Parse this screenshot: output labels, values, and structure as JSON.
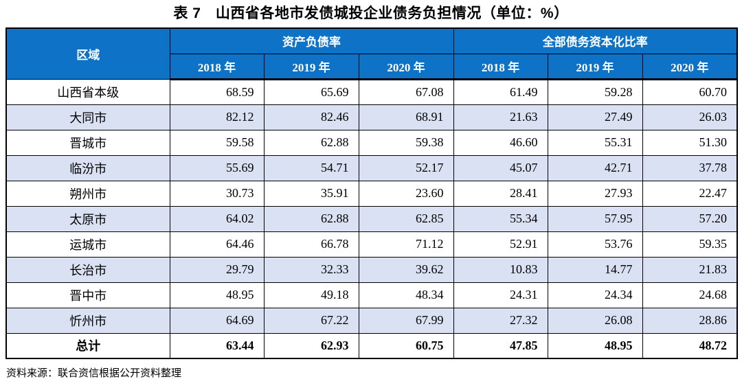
{
  "title": "表 7　山西省各地市发债城投企业债务负担情况（单位：%）",
  "colors": {
    "header_bg": "#0E72C6",
    "header_text": "#FFFFFF",
    "alt_row_bg": "#D9E1F2",
    "border": "#000000"
  },
  "table": {
    "region_header": "区域",
    "group_headers": [
      "资产负债率",
      "全部债务资本化比率"
    ],
    "year_headers": [
      "2018 年",
      "2019 年",
      "2020 年",
      "2018 年",
      "2019 年",
      "2020 年"
    ],
    "rows": [
      {
        "region": "山西省本级",
        "values": [
          "68.59",
          "65.69",
          "67.08",
          "61.49",
          "59.28",
          "60.70"
        ]
      },
      {
        "region": "大同市",
        "values": [
          "82.12",
          "82.46",
          "68.91",
          "21.63",
          "27.49",
          "26.03"
        ]
      },
      {
        "region": "晋城市",
        "values": [
          "59.58",
          "62.88",
          "59.38",
          "46.60",
          "55.31",
          "51.30"
        ]
      },
      {
        "region": "临汾市",
        "values": [
          "55.69",
          "54.71",
          "52.17",
          "45.07",
          "42.71",
          "37.78"
        ]
      },
      {
        "region": "朔州市",
        "values": [
          "30.73",
          "35.91",
          "23.60",
          "28.41",
          "27.93",
          "22.47"
        ]
      },
      {
        "region": "太原市",
        "values": [
          "64.02",
          "62.88",
          "62.85",
          "55.34",
          "57.95",
          "57.20"
        ]
      },
      {
        "region": "运城市",
        "values": [
          "64.46",
          "66.78",
          "71.12",
          "52.91",
          "53.76",
          "59.35"
        ]
      },
      {
        "region": "长治市",
        "values": [
          "29.79",
          "32.33",
          "39.62",
          "10.83",
          "14.77",
          "21.83"
        ]
      },
      {
        "region": "晋中市",
        "values": [
          "48.95",
          "49.18",
          "48.34",
          "24.31",
          "24.34",
          "24.68"
        ]
      },
      {
        "region": "忻州市",
        "values": [
          "64.69",
          "67.22",
          "67.99",
          "27.32",
          "26.08",
          "28.86"
        ]
      },
      {
        "region": "总计",
        "values": [
          "63.44",
          "62.93",
          "60.75",
          "47.85",
          "48.95",
          "48.72"
        ],
        "total": true
      }
    ]
  },
  "source_note": "资料来源：联合资信根据公开资料整理"
}
